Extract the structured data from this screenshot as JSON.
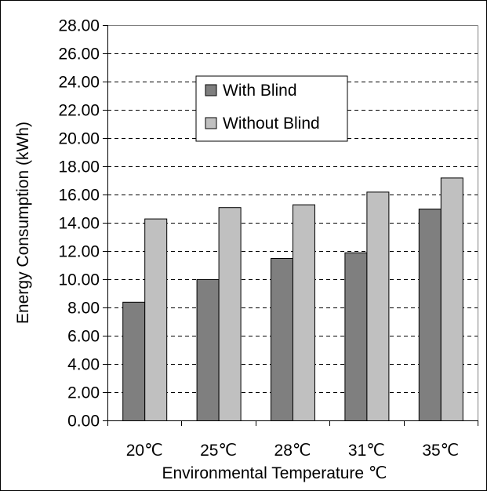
{
  "chart_data": {
    "type": "bar",
    "categories": [
      "20℃",
      "25℃",
      "28℃",
      "31℃",
      "35℃"
    ],
    "series": [
      {
        "name": "With Blind",
        "values": [
          8.4,
          10.0,
          11.5,
          11.9,
          15.0
        ],
        "color": "#7f7f7f"
      },
      {
        "name": "Without Blind",
        "values": [
          14.3,
          15.1,
          15.3,
          16.2,
          17.2
        ],
        "color": "#c0c0c0"
      }
    ],
    "title": "",
    "xlabel": "Environmental Temperature ℃",
    "ylabel": "Energy Consumption (kWh)",
    "ylim": [
      0,
      28
    ],
    "ytick_step": 2,
    "ytick_format_decimals": 2,
    "grid": "horizontal dashed",
    "legend_position": "upper-center"
  }
}
